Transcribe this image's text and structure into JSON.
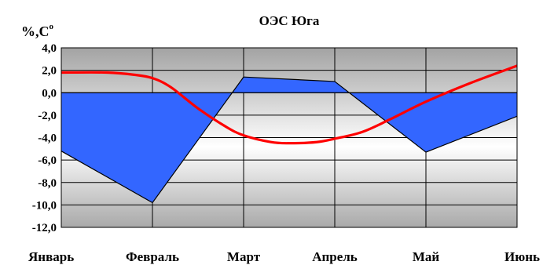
{
  "chart_data": {
    "type": "area",
    "title": "ОЭС Юга",
    "ylabel": "%,C",
    "ylabel_superscript": "o",
    "categories": [
      "Январь",
      "Февраль",
      "Март",
      "Апрель",
      "Май",
      "Июнь"
    ],
    "ylim": [
      -12,
      4
    ],
    "ytick_values": [
      4,
      2,
      0,
      -2,
      -4,
      -6,
      -8,
      -10,
      -12
    ],
    "ytick_labels": [
      "4,0",
      "2,0",
      "0,0",
      "-2,0",
      "-4,0",
      "-6,0",
      "-8,0",
      "-10,0",
      "-12,0"
    ],
    "grid": true,
    "series": [
      {
        "kind": "area",
        "color": "#3366ff",
        "values": [
          -5.2,
          -9.8,
          1.4,
          1.0,
          -5.3,
          -2.1
        ]
      },
      {
        "kind": "line",
        "color": "#ff0000",
        "x": [
          0,
          0.5,
          0.8,
          1.0,
          1.2,
          1.5,
          1.8,
          2.0,
          2.3,
          2.5,
          2.8,
          3.0,
          3.3,
          3.6,
          4.0,
          4.5,
          5.0
        ],
        "values": [
          1.8,
          1.8,
          1.6,
          1.3,
          0.5,
          -1.4,
          -3.0,
          -3.8,
          -4.4,
          -4.5,
          -4.4,
          -4.1,
          -3.5,
          -2.4,
          -0.8,
          0.9,
          2.4
        ]
      }
    ]
  }
}
